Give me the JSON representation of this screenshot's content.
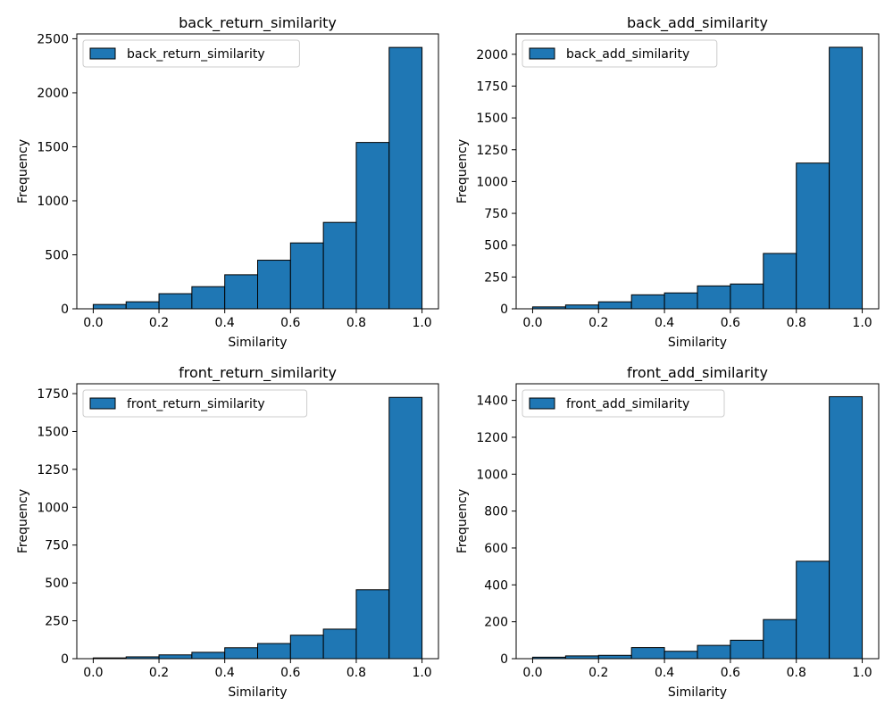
{
  "colors": {
    "bar_fill": "#1f77b4",
    "bar_edge": "#000000",
    "legend_border": "#cccccc"
  },
  "chart_data": [
    {
      "type": "bar",
      "title": "back_return_similarity",
      "xlabel": "Similarity",
      "ylabel": "Frequency",
      "legend": "back_return_similarity",
      "legend_placement": "upper-left",
      "bin_edges": [
        0.0,
        0.1,
        0.2,
        0.3,
        0.4,
        0.5,
        0.6,
        0.7,
        0.8,
        0.9,
        1.0
      ],
      "values": [
        40,
        65,
        140,
        205,
        315,
        450,
        610,
        800,
        1540,
        2420
      ],
      "xlim": [
        -0.05,
        1.05
      ],
      "ylim": [
        0,
        2545
      ],
      "xticks": [
        0.0,
        0.2,
        0.4,
        0.6,
        0.8,
        1.0
      ],
      "xtick_labels": [
        "0.0",
        "0.2",
        "0.4",
        "0.6",
        "0.8",
        "1.0"
      ],
      "yticks": [
        0,
        500,
        1000,
        1500,
        2000,
        2500
      ],
      "ytick_labels": [
        "0",
        "500",
        "1000",
        "1500",
        "2000",
        "2500"
      ],
      "grid": false
    },
    {
      "type": "bar",
      "title": "back_add_similarity",
      "xlabel": "Similarity",
      "ylabel": "Frequency",
      "legend": "back_add_similarity",
      "legend_placement": "upper-left",
      "bin_edges": [
        0.0,
        0.1,
        0.2,
        0.3,
        0.4,
        0.5,
        0.6,
        0.7,
        0.8,
        0.9,
        1.0
      ],
      "values": [
        15,
        30,
        55,
        110,
        125,
        180,
        195,
        435,
        1145,
        2055
      ],
      "xlim": [
        -0.05,
        1.05
      ],
      "ylim": [
        0,
        2160
      ],
      "xticks": [
        0.0,
        0.2,
        0.4,
        0.6,
        0.8,
        1.0
      ],
      "xtick_labels": [
        "0.0",
        "0.2",
        "0.4",
        "0.6",
        "0.8",
        "1.0"
      ],
      "yticks": [
        0,
        250,
        500,
        750,
        1000,
        1250,
        1500,
        1750,
        2000
      ],
      "ytick_labels": [
        "0",
        "250",
        "500",
        "750",
        "1000",
        "1250",
        "1500",
        "1750",
        "2000"
      ],
      "grid": false
    },
    {
      "type": "bar",
      "title": "front_return_similarity",
      "xlabel": "Similarity",
      "ylabel": "Frequency",
      "legend": "front_return_similarity",
      "legend_placement": "upper-left",
      "bin_edges": [
        0.0,
        0.1,
        0.2,
        0.3,
        0.4,
        0.5,
        0.6,
        0.7,
        0.8,
        0.9,
        1.0
      ],
      "values": [
        5,
        12,
        25,
        42,
        72,
        100,
        155,
        195,
        455,
        1725
      ],
      "xlim": [
        -0.05,
        1.05
      ],
      "ylim": [
        0,
        1815
      ],
      "xticks": [
        0.0,
        0.2,
        0.4,
        0.6,
        0.8,
        1.0
      ],
      "xtick_labels": [
        "0.0",
        "0.2",
        "0.4",
        "0.6",
        "0.8",
        "1.0"
      ],
      "yticks": [
        0,
        250,
        500,
        750,
        1000,
        1250,
        1500,
        1750
      ],
      "ytick_labels": [
        "0",
        "250",
        "500",
        "750",
        "1000",
        "1250",
        "1500",
        "1750"
      ],
      "grid": false
    },
    {
      "type": "bar",
      "title": "front_add_similarity",
      "xlabel": "Similarity",
      "ylabel": "Frequency",
      "legend": "front_add_similarity",
      "legend_placement": "upper-left",
      "bin_edges": [
        0.0,
        0.1,
        0.2,
        0.3,
        0.4,
        0.5,
        0.6,
        0.7,
        0.8,
        0.9,
        1.0
      ],
      "values": [
        8,
        15,
        18,
        60,
        40,
        72,
        100,
        212,
        528,
        1420
      ],
      "xlim": [
        -0.05,
        1.05
      ],
      "ylim": [
        0,
        1490
      ],
      "xticks": [
        0.0,
        0.2,
        0.4,
        0.6,
        0.8,
        1.0
      ],
      "xtick_labels": [
        "0.0",
        "0.2",
        "0.4",
        "0.6",
        "0.8",
        "1.0"
      ],
      "yticks": [
        0,
        200,
        400,
        600,
        800,
        1000,
        1200,
        1400
      ],
      "ytick_labels": [
        "0",
        "200",
        "400",
        "600",
        "800",
        "1000",
        "1200",
        "1400"
      ],
      "grid": false
    }
  ]
}
